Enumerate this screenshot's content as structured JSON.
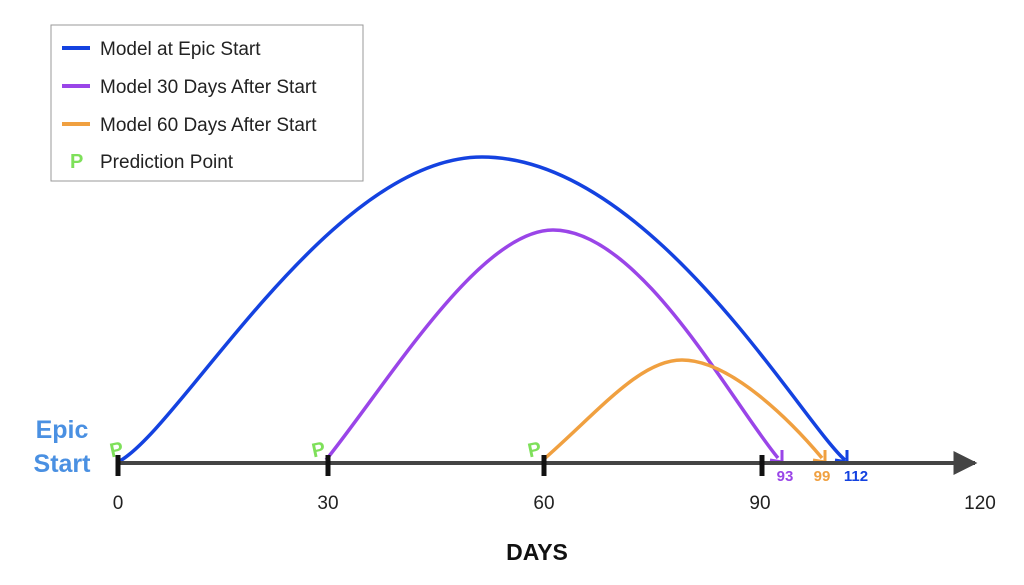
{
  "colors": {
    "blue": "#1442e0",
    "purple": "#9a45e8",
    "orange": "#f0a040",
    "green": "#7ee05a",
    "axis": "#444444",
    "start_label": "#4a90e2"
  },
  "legend": {
    "items": [
      {
        "label": "Model at Epic Start",
        "color": "#1442e0",
        "marker": "line"
      },
      {
        "label": "Model 30 Days After Start",
        "color": "#9a45e8",
        "marker": "line"
      },
      {
        "label": "Model 60 Days After Start",
        "color": "#f0a040",
        "marker": "line"
      },
      {
        "label": "Prediction Point",
        "color": "#7ee05a",
        "marker": "P"
      }
    ]
  },
  "axis": {
    "label": "DAYS",
    "min": 0,
    "max": 120,
    "tick_labels": [
      {
        "value": 0,
        "label": "0"
      },
      {
        "value": 30,
        "label": "30"
      },
      {
        "value": 60,
        "label": "60"
      },
      {
        "value": 90,
        "label": "90"
      },
      {
        "value": 120,
        "label": "120"
      }
    ],
    "tick_marks": [
      0,
      30,
      60,
      90
    ]
  },
  "start_label": {
    "line1": "Epic",
    "line2": "Start"
  },
  "prediction_marker": "P",
  "models": [
    {
      "name": "Model at Epic Start",
      "start": 0,
      "end_label": "112",
      "color": "#1442e0"
    },
    {
      "name": "Model 30 Days After Start",
      "start": 30,
      "end_label": "93",
      "color": "#9a45e8"
    },
    {
      "name": "Model 60 Days After Start",
      "start": 60,
      "end_label": "99",
      "color": "#f0a040"
    }
  ]
}
